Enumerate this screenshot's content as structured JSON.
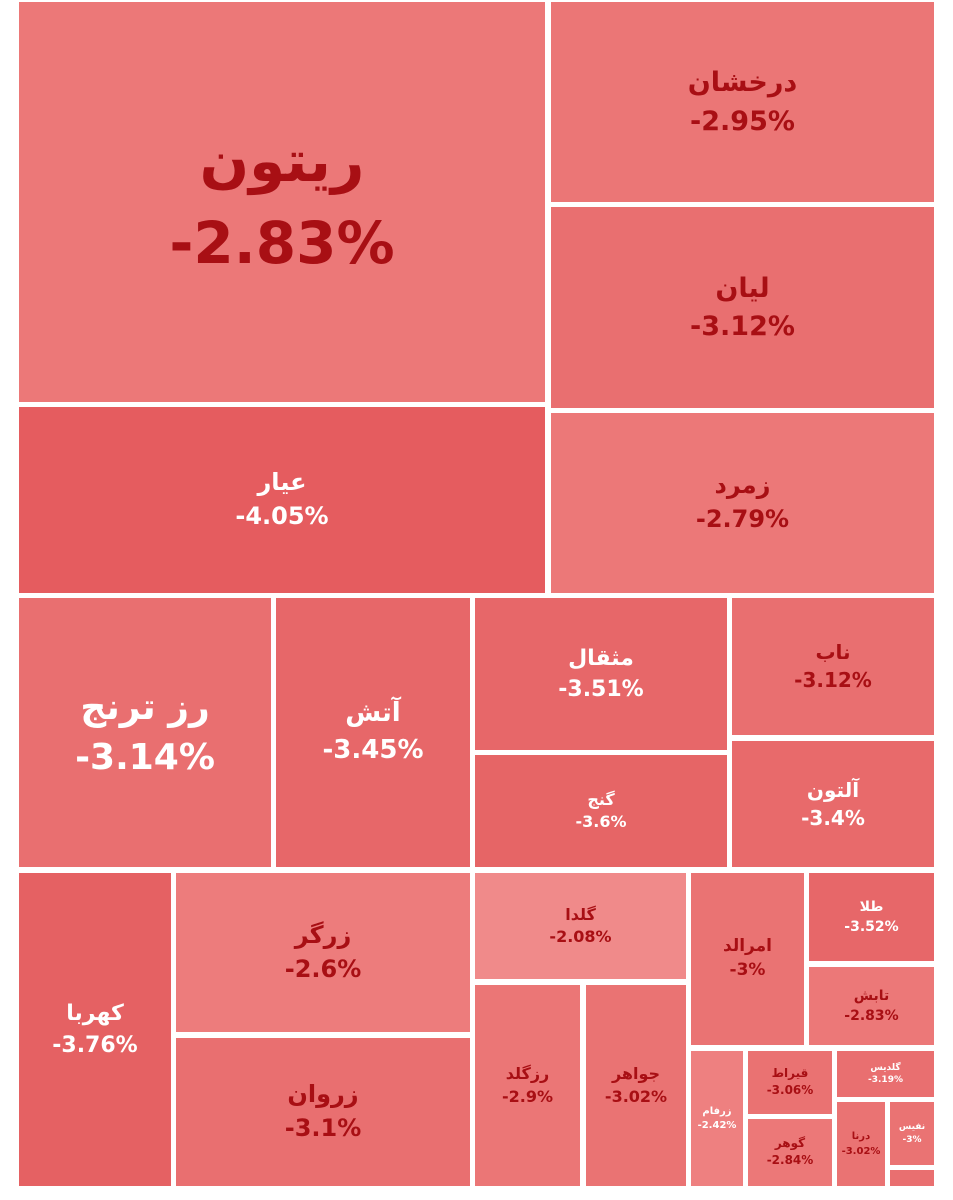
{
  "chart_data": {
    "type": "treemap",
    "value_unit": "%",
    "items": [
      {
        "name": "ريتون",
        "change": "-2.83%",
        "value": -2.83,
        "color": "#ec7878",
        "text_color": "#a80f14"
      },
      {
        "name": "درخشان",
        "change": "-2.95%",
        "value": -2.95,
        "color": "#eb7676",
        "text_color": "#a80f14"
      },
      {
        "name": "لیان",
        "change": "-3.12%",
        "value": -3.12,
        "color": "#e96f70",
        "text_color": "#a80f14"
      },
      {
        "name": "عیار",
        "change": "-4.05%",
        "value": -4.05,
        "color": "#e55c5f",
        "text_color": "#ffffff"
      },
      {
        "name": "زمرد",
        "change": "-2.79%",
        "value": -2.79,
        "color": "#ec7878",
        "text_color": "#a80f14"
      },
      {
        "name": "رز ترنج",
        "change": "-3.14%",
        "value": -3.14,
        "color": "#e96f70",
        "text_color": "#ffffff"
      },
      {
        "name": "آتش",
        "change": "-3.45%",
        "value": -3.45,
        "color": "#e76769",
        "text_color": "#ffffff"
      },
      {
        "name": "مثقال",
        "change": "-3.51%",
        "value": -3.51,
        "color": "#e76769",
        "text_color": "#ffffff"
      },
      {
        "name": "ناب",
        "change": "-3.12%",
        "value": -3.12,
        "color": "#e96f70",
        "text_color": "#a80f14"
      },
      {
        "name": "گنج",
        "change": "-3.6%",
        "value": -3.6,
        "color": "#e66566",
        "text_color": "#ffffff"
      },
      {
        "name": "آلتون",
        "change": "-3.4%",
        "value": -3.4,
        "color": "#e86a6b",
        "text_color": "#ffffff"
      },
      {
        "name": "کهربا",
        "change": "-3.76%",
        "value": -3.76,
        "color": "#e56163",
        "text_color": "#ffffff"
      },
      {
        "name": "زرگر",
        "change": "-2.6%",
        "value": -2.6,
        "color": "#ed7c7c",
        "text_color": "#a80f14"
      },
      {
        "name": "زروان",
        "change": "-3.1%",
        "value": -3.1,
        "color": "#e96f70",
        "text_color": "#a80f14"
      },
      {
        "name": "گلدا",
        "change": "-2.08%",
        "value": -2.08,
        "color": "#f08a8a",
        "text_color": "#a80f14"
      },
      {
        "name": "رزگلد",
        "change": "-2.9%",
        "value": -2.9,
        "color": "#eb7676",
        "text_color": "#a80f14"
      },
      {
        "name": "جواهر",
        "change": "-3.02%",
        "value": -3.02,
        "color": "#ea7373",
        "text_color": "#a80f14"
      },
      {
        "name": "امرالد",
        "change": "-3%",
        "value": -3.0,
        "color": "#ea7373",
        "text_color": "#a80f14"
      },
      {
        "name": "طلا",
        "change": "-3.52%",
        "value": -3.52,
        "color": "#e76769",
        "text_color": "#ffffff"
      },
      {
        "name": "تابش",
        "change": "-2.83%",
        "value": -2.83,
        "color": "#ec7878",
        "text_color": "#a80f14"
      },
      {
        "name": "زرفام",
        "change": "-2.42%",
        "value": -2.42,
        "color": "#ee8080",
        "text_color": "#ffffff"
      },
      {
        "name": "قیراط",
        "change": "-3.06%",
        "value": -3.06,
        "color": "#ea7272",
        "text_color": "#a80f14"
      },
      {
        "name": "گلدیس",
        "change": "-3.19%",
        "value": -3.19,
        "color": "#e96f70",
        "text_color": "#ffffff"
      },
      {
        "name": "گوهر",
        "change": "-2.84%",
        "value": -2.84,
        "color": "#ec7878",
        "text_color": "#a80f14"
      },
      {
        "name": "درنا",
        "change": "-3.02%",
        "value": -3.02,
        "color": "#ea7373",
        "text_color": "#a80f14"
      },
      {
        "name": "نفیس",
        "change": "-3%",
        "value": -3.0,
        "color": "#ea7373",
        "text_color": "#ffffff"
      }
    ]
  }
}
